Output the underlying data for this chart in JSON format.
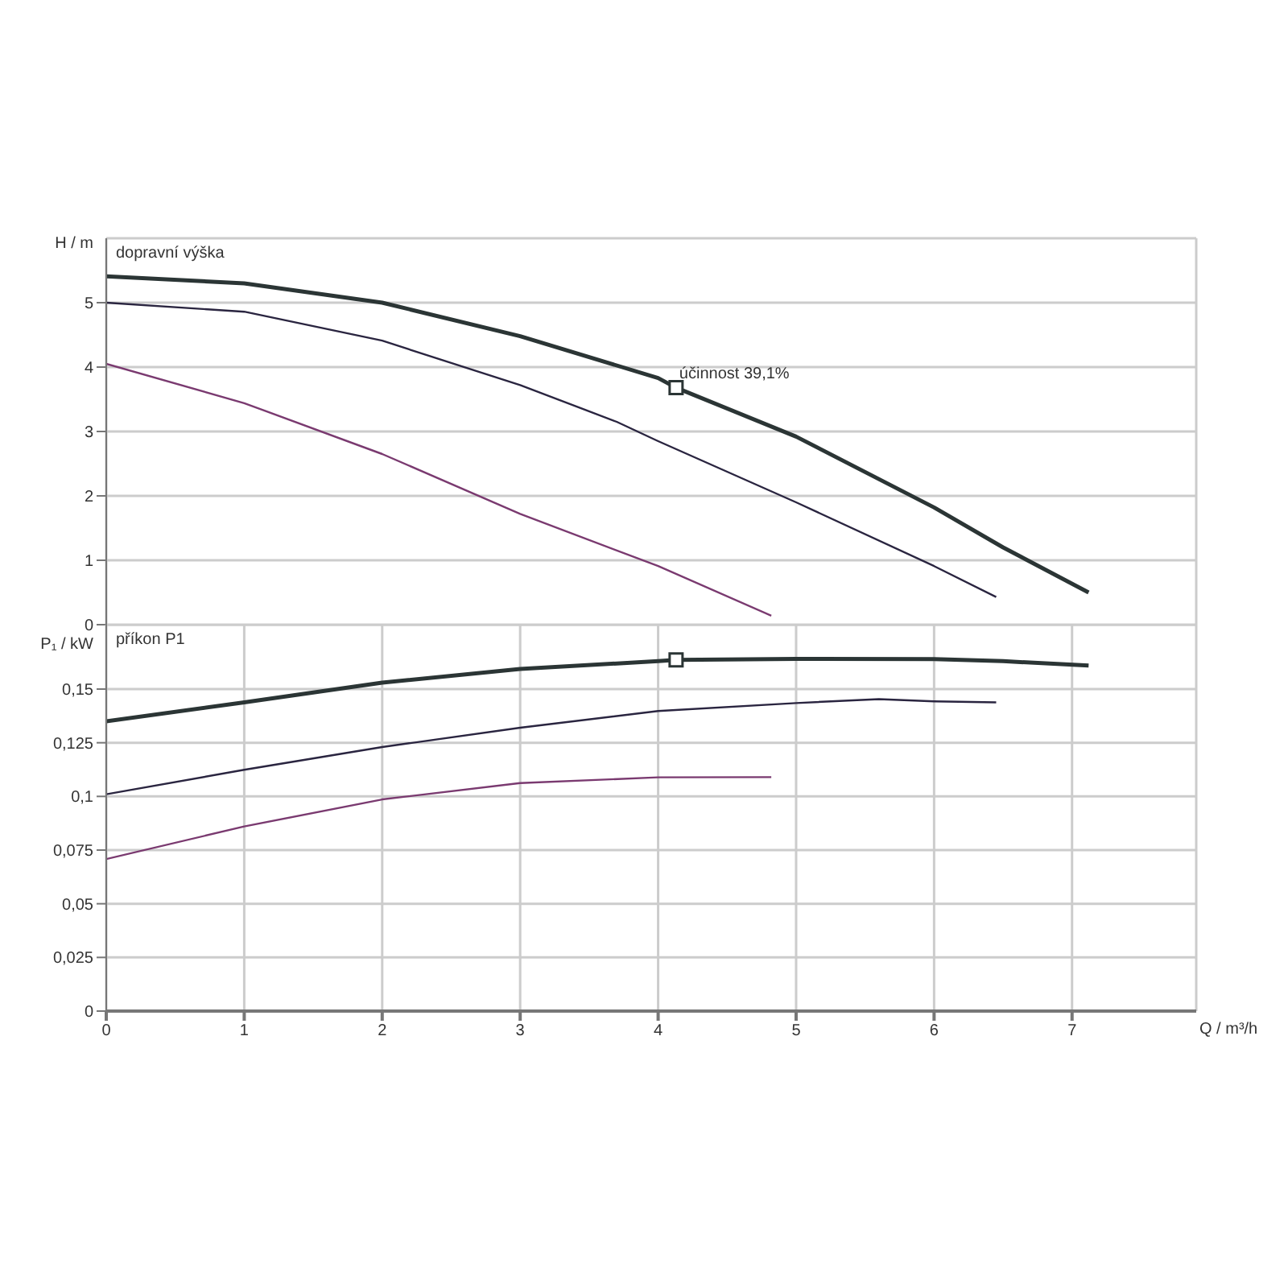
{
  "chart_data": [
    {
      "type": "line",
      "ylabel": "H / m",
      "annotations": [
        "dopravní výška",
        {
          "text": "účinnost 39,1%",
          "x": 4.13,
          "y": 3.68
        }
      ],
      "xlim": [
        0,
        7.9
      ],
      "xticks": [
        0,
        1,
        2,
        3,
        4,
        5,
        6,
        7
      ],
      "ylim": [
        0,
        6
      ],
      "yticks": [
        0,
        1,
        2,
        3,
        4,
        5
      ],
      "tick_labels": "y",
      "grid": true,
      "marker": "none",
      "line_style": "solid",
      "series": [
        {
          "color": "#2b3535",
          "x": [
            0,
            1,
            2,
            3,
            4,
            4.13,
            5,
            6,
            6.5,
            7.12
          ],
          "values": [
            5.41,
            5.3,
            5.0,
            4.48,
            3.83,
            3.68,
            2.92,
            1.82,
            1.2,
            0.5
          ]
        },
        {
          "color": "#2a2540",
          "x": [
            0,
            1,
            2,
            3,
            3.7,
            4,
            5,
            6,
            6.45
          ],
          "values": [
            5.0,
            4.86,
            4.41,
            3.72,
            3.15,
            2.85,
            1.9,
            0.91,
            0.43
          ]
        },
        {
          "color": "#7a3a70",
          "x": [
            0,
            1,
            2,
            3,
            4,
            4.82
          ],
          "values": [
            4.05,
            3.44,
            2.65,
            1.72,
            0.91,
            0.14
          ]
        },
        {
          "type": "scatter",
          "marker": "square",
          "color": "#2b3535",
          "x": [
            4.13
          ],
          "values": [
            3.68
          ]
        }
      ]
    },
    {
      "type": "line",
      "ylabel": "P₁ / kW",
      "xlabel": "Q / m³/h",
      "annotations": [
        "příkon P1"
      ],
      "xlim": [
        0,
        7.9
      ],
      "xticks": [
        0,
        1,
        2,
        3,
        4,
        5,
        6,
        7
      ],
      "ylim": [
        0,
        0.18
      ],
      "yticks": [
        0,
        {
          "value": 0.025,
          "label": "0,025"
        },
        {
          "value": 0.05,
          "label": "0,05"
        },
        {
          "value": 0.075,
          "label": "0,075"
        },
        {
          "value": 0.1,
          "label": "0,1"
        },
        {
          "value": 0.125,
          "label": "0,125"
        },
        {
          "value": 0.15,
          "label": "0,15"
        }
      ],
      "grid": true,
      "marker": "none",
      "line_style": "solid",
      "series": [
        {
          "color": "#2b3535",
          "x": [
            0,
            1,
            2,
            3,
            4,
            4.13,
            5,
            6,
            6.5,
            7.12
          ],
          "values": [
            0.135,
            0.1438,
            0.153,
            0.1594,
            0.163,
            0.1636,
            0.1641,
            0.164,
            0.163,
            0.161
          ]
        },
        {
          "color": "#2a2540",
          "x": [
            0,
            1,
            2,
            3,
            4,
            5,
            5.6,
            6,
            6.45
          ],
          "values": [
            0.101,
            0.1124,
            0.123,
            0.132,
            0.1398,
            0.1435,
            0.1453,
            0.1443,
            0.1438
          ]
        },
        {
          "color": "#7a3a70",
          "x": [
            0,
            1,
            2,
            3,
            4,
            4.82
          ],
          "values": [
            0.0708,
            0.086,
            0.0986,
            0.1062,
            0.1089,
            0.109
          ]
        },
        {
          "type": "scatter",
          "marker": "square",
          "color": "#2b3535",
          "x": [
            4.13
          ],
          "values": [
            0.1636
          ]
        }
      ]
    }
  ]
}
